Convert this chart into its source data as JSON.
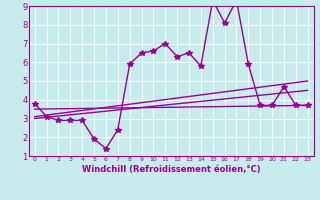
{
  "title": "",
  "xlabel": "Windchill (Refroidissement éolien,°C)",
  "background_color": "#c8ecec",
  "line_color": "#990099",
  "grid_color": "#ffffff",
  "xlim": [
    -0.5,
    23.5
  ],
  "ylim": [
    1,
    9
  ],
  "yticks": [
    1,
    2,
    3,
    4,
    5,
    6,
    7,
    8,
    9
  ],
  "xticks": [
    0,
    1,
    2,
    3,
    4,
    5,
    6,
    7,
    8,
    9,
    10,
    11,
    12,
    13,
    14,
    15,
    16,
    17,
    18,
    19,
    20,
    21,
    22,
    23
  ],
  "series1_y": [
    3.8,
    3.1,
    2.9,
    2.9,
    2.9,
    1.9,
    1.4,
    2.4,
    5.9,
    6.5,
    6.6,
    7.0,
    6.3,
    6.5,
    5.8,
    9.3,
    8.1,
    9.3,
    5.9,
    3.7,
    3.7,
    4.7,
    3.7,
    3.7
  ],
  "trend1_x": [
    0,
    23
  ],
  "trend1_y": [
    3.5,
    3.7
  ],
  "trend2_x": [
    0,
    23
  ],
  "trend2_y": [
    3.1,
    5.0
  ],
  "trend3_x": [
    0,
    23
  ],
  "trend3_y": [
    3.0,
    4.5
  ],
  "marker": "*",
  "markersize": 4,
  "linewidth": 1.0,
  "xlabel_fontsize": 6,
  "tick_fontsize_x": 4.5,
  "tick_fontsize_y": 6
}
